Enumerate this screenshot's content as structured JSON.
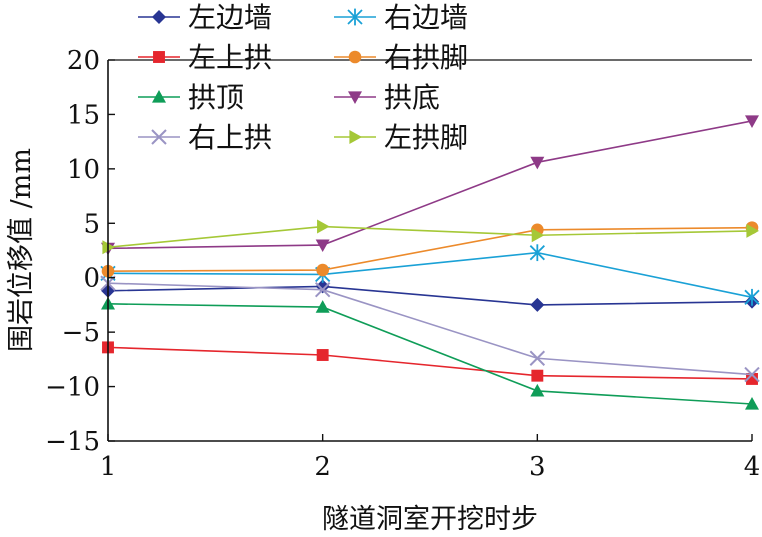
{
  "chart_data": {
    "type": "line",
    "x": [
      1,
      2,
      3,
      4
    ],
    "xlabel": "隧道洞室开挖时步",
    "ylabel": "围岩位移值 /mm",
    "xlim": [
      1,
      4
    ],
    "ylim": [
      -15,
      20
    ],
    "xticks": [
      "1",
      "2",
      "3",
      "4"
    ],
    "yticks": [
      "−15",
      "−10",
      "−5",
      "0",
      "5",
      "10",
      "15",
      "20"
    ],
    "grid": false,
    "legend_position": "top-left",
    "series": [
      {
        "name": "左边墙",
        "color": "#283593",
        "marker": "diamond",
        "values": [
          -1.2,
          -0.8,
          -2.5,
          -2.2
        ]
      },
      {
        "name": "右边墙",
        "color": "#1aa1d6",
        "marker": "asterisk",
        "values": [
          0.4,
          0.3,
          2.3,
          -1.8
        ]
      },
      {
        "name": "左上拱",
        "color": "#e5262d",
        "marker": "square",
        "values": [
          -6.4,
          -7.1,
          -9.0,
          -9.3
        ]
      },
      {
        "name": "右拱脚",
        "color": "#ec8a2b",
        "marker": "circle",
        "values": [
          0.6,
          0.7,
          4.4,
          4.6
        ]
      },
      {
        "name": "拱顶",
        "color": "#0f9d58",
        "marker": "triangle-up",
        "values": [
          -2.4,
          -2.7,
          -10.4,
          -11.6
        ]
      },
      {
        "name": "拱底",
        "color": "#8e3a87",
        "marker": "triangle-down",
        "values": [
          2.7,
          3.0,
          10.6,
          14.4
        ]
      },
      {
        "name": "右上拱",
        "color": "#9a94c4",
        "marker": "x",
        "values": [
          -0.5,
          -1.1,
          -7.4,
          -8.9
        ]
      },
      {
        "name": "左拱脚",
        "color": "#a5c837",
        "marker": "triangle-right",
        "values": [
          2.8,
          4.7,
          3.9,
          4.3
        ]
      }
    ]
  }
}
